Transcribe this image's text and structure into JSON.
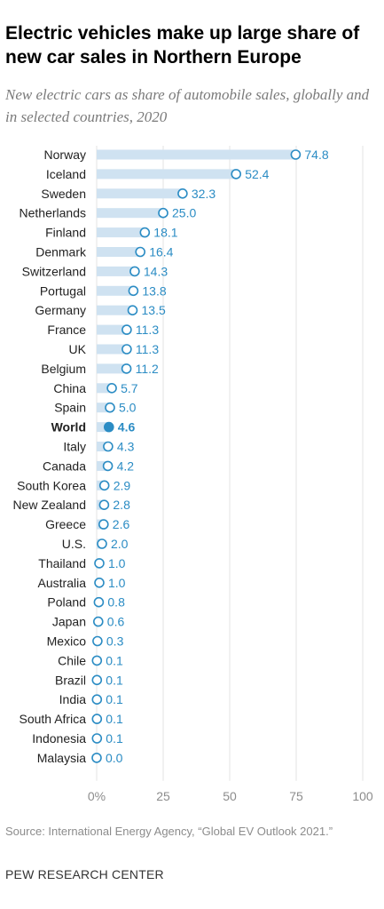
{
  "title": "Electric vehicles make up large share of new car sales in Northern Europe",
  "subtitle": "New electric cars as share of automobile sales, globally and in selected countries, 2020",
  "source": "Source: International Energy Agency, “Global EV Outlook 2021.”",
  "credit": "PEW RESEARCH CENTER",
  "colors": {
    "bar": "#cfe2f1",
    "dot": "#2b8cc4",
    "label": "#2b8cc4",
    "grid": "#e3e3e3",
    "axis": "#8c8c8c"
  },
  "chart_data": {
    "type": "bar",
    "orientation": "horizontal",
    "title": "Electric vehicles make up large share of new car sales in Northern Europe",
    "subtitle": "New electric cars as share of automobile sales, globally and in selected countries, 2020",
    "xlim": [
      0,
      100
    ],
    "x_ticks": [
      "0%",
      "25",
      "50",
      "75",
      "100"
    ],
    "x_tick_values": [
      0,
      25,
      50,
      75,
      100
    ],
    "grid": true,
    "highlight": "World",
    "categories": [
      "Norway",
      "Iceland",
      "Sweden",
      "Netherlands",
      "Finland",
      "Denmark",
      "Switzerland",
      "Portugal",
      "Germany",
      "France",
      "UK",
      "Belgium",
      "China",
      "Spain",
      "World",
      "Italy",
      "Canada",
      "South Korea",
      "New Zealand",
      "Greece",
      "U.S.",
      "Thailand",
      "Australia",
      "Poland",
      "Japan",
      "Mexico",
      "Chile",
      "Brazil",
      "India",
      "South Africa",
      "Indonesia",
      "Malaysia"
    ],
    "values": [
      74.8,
      52.4,
      32.3,
      25.0,
      18.1,
      16.4,
      14.3,
      13.8,
      13.5,
      11.3,
      11.3,
      11.2,
      5.7,
      5.0,
      4.6,
      4.3,
      4.2,
      2.9,
      2.8,
      2.6,
      2.0,
      1.0,
      1.0,
      0.8,
      0.6,
      0.3,
      0.1,
      0.1,
      0.1,
      0.1,
      0.1,
      0.0
    ],
    "labels": [
      "74.8",
      "52.4",
      "32.3",
      "25.0",
      "18.1",
      "16.4",
      "14.3",
      "13.8",
      "13.5",
      "11.3",
      "11.3",
      "11.2",
      "5.7",
      "5.0",
      "4.6",
      "4.3",
      "4.2",
      "2.9",
      "2.8",
      "2.6",
      "2.0",
      "1.0",
      "1.0",
      "0.8",
      "0.6",
      "0.3",
      "0.1",
      "0.1",
      "0.1",
      "0.1",
      "0.1",
      "0.0"
    ]
  }
}
